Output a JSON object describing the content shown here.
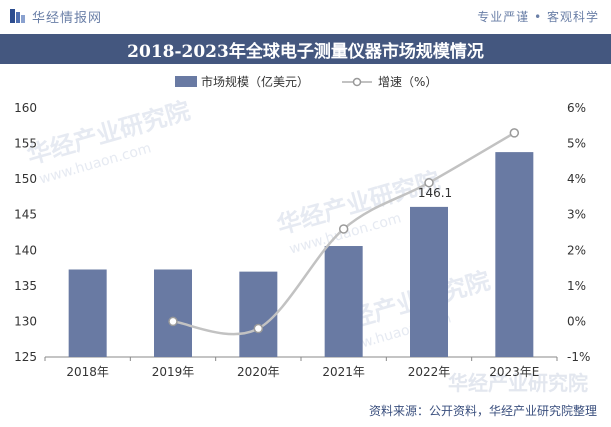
{
  "brand": {
    "name": "华经情报网",
    "tagline": "专业严谨 • 客观科学"
  },
  "watermark": {
    "text": "华经产业研究院",
    "url": "www.huaon.com"
  },
  "source": "资料来源：公开资料，华经产业研究院整理",
  "colors": {
    "bar": "#697aa3",
    "line": "#c2c2c2",
    "title_bg": "#44577f",
    "text": "#333333"
  },
  "chart_data": {
    "type": "bar",
    "title": "2018-2023年全球电子测量仪器市场规模情况",
    "categories": [
      "2018年",
      "2019年",
      "2020年",
      "2021年",
      "2022年",
      "2023年E"
    ],
    "series": [
      {
        "name": "市场规模（亿美元）",
        "type": "bar",
        "axis": "left",
        "values": [
          137.3,
          137.3,
          137.0,
          140.6,
          146.1,
          153.8
        ]
      },
      {
        "name": "增速（%）",
        "type": "line",
        "axis": "right",
        "values": [
          null,
          0.0,
          -0.2,
          2.6,
          3.9,
          5.3
        ]
      }
    ],
    "data_labels": [
      {
        "category": "2022年",
        "series": "市场规模（亿美元）",
        "text": "146.1"
      }
    ],
    "y_left": {
      "min": 125,
      "max": 160,
      "ticks": [
        125,
        130,
        135,
        140,
        145,
        150,
        155,
        160
      ]
    },
    "y_right": {
      "min": -1,
      "max": 6,
      "ticks": [
        "-1%",
        "0%",
        "1%",
        "2%",
        "3%",
        "4%",
        "5%",
        "6%"
      ]
    },
    "legend_position": "top-center",
    "grid": false
  }
}
